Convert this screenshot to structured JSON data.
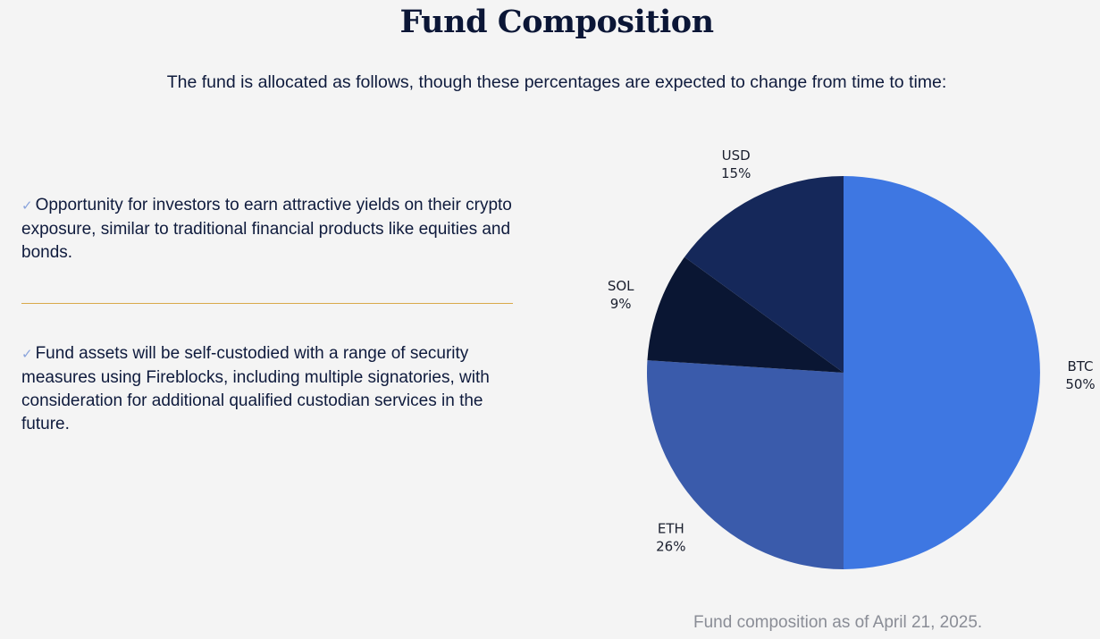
{
  "header": {
    "title": "Fund Composition",
    "intro": "The fund is allocated as follows, though these percentages are expected to change from time to time:"
  },
  "bullets": [
    {
      "check": "✓",
      "text": "Opportunity for investors to earn attractive yields on their crypto exposure, similar to traditional financial products like equities and bonds."
    },
    {
      "check": "✓",
      "text": "Fund assets will be self-custodied with a range of security measures using Fireblocks, including multiple signatories, with consideration for additional qualified custodian services in the future."
    }
  ],
  "colors": {
    "divider": "#d9a94a",
    "check": "#8aa4dc"
  },
  "chart_data": {
    "type": "pie",
    "title": "",
    "slices": [
      {
        "label": "BTC",
        "pct_label": "50%",
        "value": 50,
        "color": "#3e77e2"
      },
      {
        "label": "ETH",
        "pct_label": "26%",
        "value": 26,
        "color": "#3a5bab"
      },
      {
        "label": "SOL",
        "pct_label": "9%",
        "value": 9,
        "color": "#0a1633"
      },
      {
        "label": "USD",
        "pct_label": "15%",
        "value": 15,
        "color": "#15285a"
      }
    ],
    "start": "12 o'clock",
    "direction": "clockwise"
  },
  "caption": "Fund composition as of April 21, 2025."
}
